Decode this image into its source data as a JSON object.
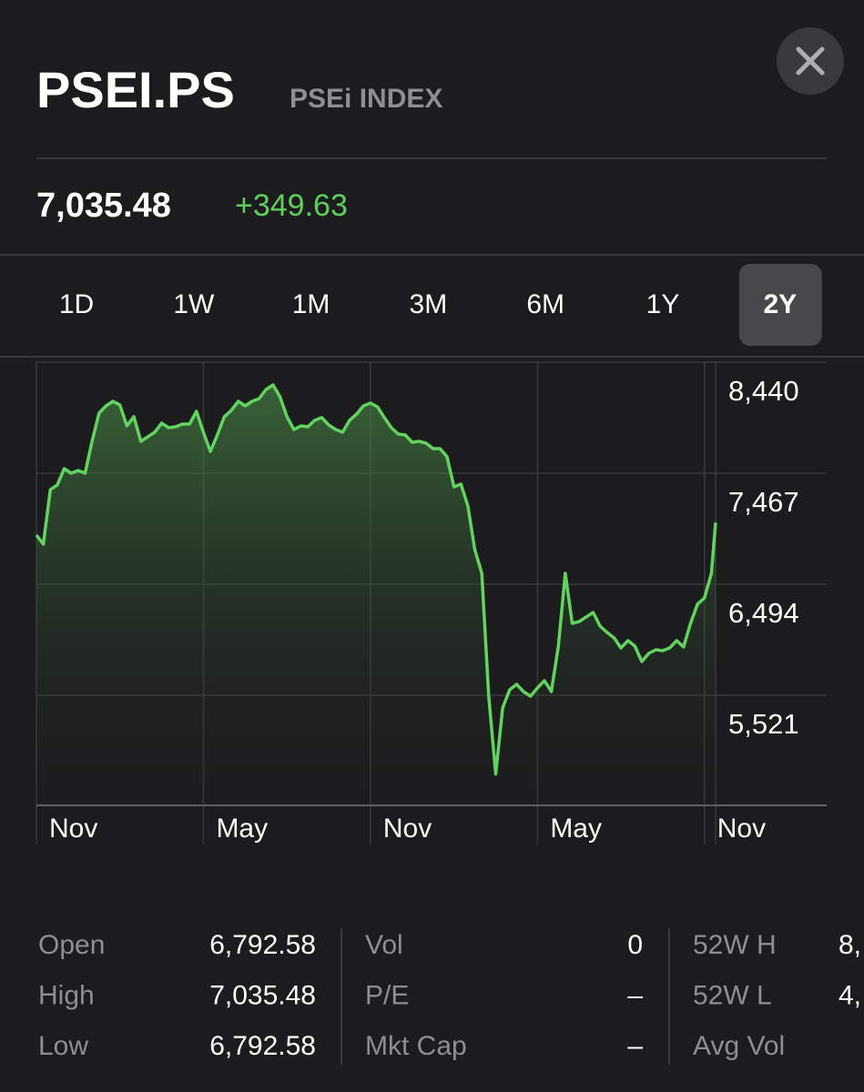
{
  "header": {
    "symbol": "PSEI.PS",
    "name": "PSEi INDEX",
    "price": "7,035.48",
    "change": "+349.63"
  },
  "tabs": [
    "1D",
    "1W",
    "1M",
    "3M",
    "6M",
    "1Y",
    "2Y"
  ],
  "selected_tab": "2Y",
  "chart_data": {
    "type": "line",
    "x": [
      0,
      0.25,
      0.5,
      0.75,
      1,
      1.25,
      1.5,
      1.75,
      2,
      2.25,
      2.5,
      2.75,
      3,
      3.25,
      3.5,
      3.75,
      4,
      4.25,
      4.5,
      4.75,
      5,
      5.25,
      5.5,
      5.75,
      6,
      6.25,
      6.5,
      6.75,
      7,
      7.25,
      7.5,
      7.75,
      8,
      8.25,
      8.5,
      8.75,
      9,
      9.25,
      9.5,
      9.75,
      10,
      10.25,
      10.5,
      10.75,
      11,
      11.25,
      11.5,
      11.75,
      12,
      12.25,
      12.5,
      12.75,
      13,
      13.25,
      13.5,
      13.75,
      14,
      14.25,
      14.5,
      14.75,
      15,
      15.25,
      15.5,
      15.75,
      16,
      16.25,
      16.5,
      16.75,
      17,
      17.25,
      17.5,
      17.75,
      18,
      18.25,
      18.5,
      18.75,
      19,
      19.25,
      19.5,
      19.75,
      20,
      20.25,
      20.5,
      20.75,
      21,
      21.25,
      21.5,
      21.75,
      22,
      22.25,
      22.5,
      22.75,
      23,
      23.25,
      23.5,
      23.75,
      24,
      24.25,
      24.4
    ],
    "series": [
      {
        "name": "PSEi",
        "color": "#62d35f",
        "values": [
          6925,
          6845,
          7323,
          7363,
          7507,
          7467,
          7491,
          7467,
          7746,
          7993,
          8057,
          8097,
          8065,
          7882,
          7962,
          7746,
          7786,
          7826,
          7906,
          7866,
          7874,
          7898,
          7898,
          8009,
          7826,
          7658,
          7802,
          7962,
          8017,
          8097,
          8057,
          8097,
          8121,
          8201,
          8241,
          8137,
          7962,
          7850,
          7882,
          7874,
          7930,
          7954,
          7890,
          7850,
          7826,
          7930,
          7985,
          8057,
          8081,
          8049,
          7954,
          7866,
          7810,
          7802,
          7738,
          7746,
          7730,
          7682,
          7682,
          7611,
          7347,
          7371,
          7180,
          6797,
          6590,
          5513,
          4830,
          5409,
          5569,
          5617,
          5553,
          5513,
          5585,
          5649,
          5553,
          5952,
          6590,
          6151,
          6167,
          6207,
          6247,
          6127,
          6071,
          6024,
          5936,
          6000,
          5952,
          5816,
          5888,
          5920,
          5912,
          5936,
          6000,
          5944,
          6151,
          6319,
          6374,
          6590,
          7035
        ]
      }
    ],
    "xlim": [
      0,
      24.4
    ],
    "ylim": [
      4556,
      8440
    ],
    "xticks": [
      {
        "value": 0,
        "label": "Nov"
      },
      {
        "value": 6,
        "label": "May"
      },
      {
        "value": 12,
        "label": "Nov"
      },
      {
        "value": 18,
        "label": "May"
      },
      {
        "value": 24,
        "label": "Nov"
      }
    ],
    "yticks": [
      {
        "value": 8440,
        "label": "8,440"
      },
      {
        "value": 7467,
        "label": "7,467"
      },
      {
        "value": 6494,
        "label": "6,494"
      },
      {
        "value": 5521,
        "label": "5,521"
      }
    ],
    "grid": true
  },
  "stats": {
    "columns": [
      {
        "rows": [
          {
            "label": "Open",
            "value": "6,792.58"
          },
          {
            "label": "High",
            "value": "7,035.48"
          },
          {
            "label": "Low",
            "value": "6,792.58"
          }
        ]
      },
      {
        "rows": [
          {
            "label": "Vol",
            "value": "0"
          },
          {
            "label": "P/E",
            "value": "–"
          },
          {
            "label": "Mkt Cap",
            "value": "–"
          }
        ]
      },
      {
        "rows": [
          {
            "label": "52W H",
            "value": "8,"
          },
          {
            "label": "52W L",
            "value": "4,"
          },
          {
            "label": "Avg Vol"
          }
        ]
      }
    ]
  }
}
